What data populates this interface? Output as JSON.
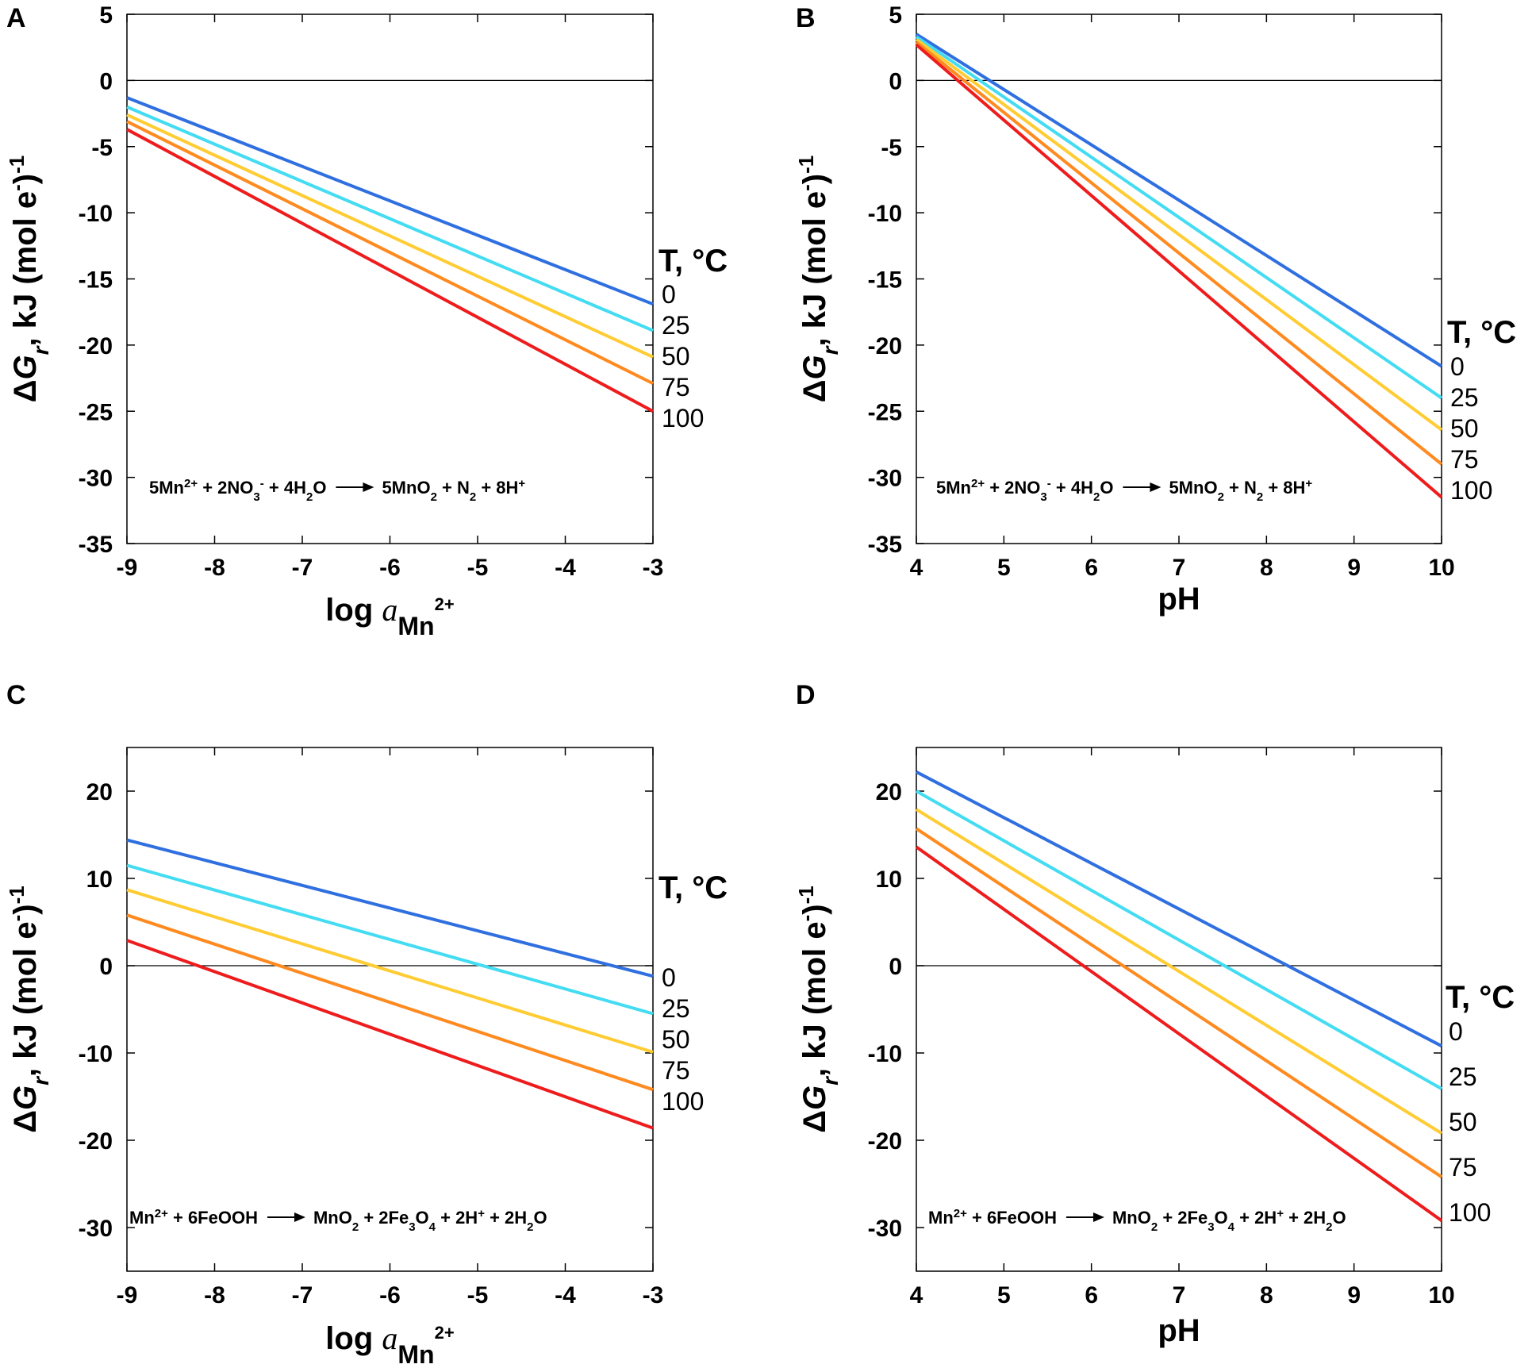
{
  "chart_data": [
    {
      "panel": "A",
      "type": "line",
      "xlabel_main": "log",
      "xlabel_italic": "a",
      "xlabel_sub": "Mn",
      "xlabel_sup": "2+",
      "ylabel_pre": "Δ",
      "ylabel_italic": "G",
      "ylabel_sub": "r",
      "ylabel_post": ", kJ (mol e",
      "ylabel_sup": "-",
      "ylabel_tail": ")",
      "ylabel_exp": "-1",
      "xlim": [
        -9,
        -3
      ],
      "ylim": [
        -35,
        5
      ],
      "xticks": [
        -9,
        -8,
        -7,
        -6,
        -5,
        -4,
        -3
      ],
      "yticks": [
        5,
        0,
        -5,
        -10,
        -15,
        -20,
        -25,
        -30,
        -35
      ],
      "xtick_labels": [
        "-9",
        "-8",
        "-7",
        "-6",
        "-5",
        "-4",
        "-3"
      ],
      "ytick_labels": [
        "5",
        "0",
        "-5",
        "-10",
        "-15",
        "-20",
        "-25",
        "-30",
        "-35"
      ],
      "legend_title": "T, °C",
      "series": [
        {
          "name": "0",
          "color": "#2f6fe0",
          "x": [
            -9,
            -3
          ],
          "y": [
            -1.3,
            -16.9
          ]
        },
        {
          "name": "25",
          "color": "#44dcf2",
          "x": [
            -9,
            -3
          ],
          "y": [
            -2.0,
            -18.9
          ]
        },
        {
          "name": "50",
          "color": "#ffcc33",
          "x": [
            -9,
            -3
          ],
          "y": [
            -2.6,
            -20.9
          ]
        },
        {
          "name": "75",
          "color": "#ff8a1f",
          "x": [
            -9,
            -3
          ],
          "y": [
            -3.1,
            -22.9
          ]
        },
        {
          "name": "100",
          "color": "#ee1c1c",
          "x": [
            -9,
            -3
          ],
          "y": [
            -3.7,
            -25.0
          ]
        }
      ],
      "equation": {
        "lhs": [
          [
            "5Mn",
            "sup",
            "2+"
          ],
          [
            " + 2NO",
            "sub",
            "3"
          ],
          [
            "",
            "sup",
            "-"
          ],
          [
            " + 4H",
            "sub",
            "2"
          ],
          [
            "O",
            "",
            ""
          ]
        ],
        "rhs": [
          [
            "5MnO",
            "sub",
            "2"
          ],
          [
            " + N",
            "sub",
            "2"
          ],
          [
            " + 8H",
            "sup",
            "+"
          ]
        ]
      }
    },
    {
      "panel": "B",
      "type": "line",
      "xlabel": "pH",
      "ylabel_pre": "Δ",
      "ylabel_italic": "G",
      "ylabel_sub": "r",
      "ylabel_post": ", kJ (mol e",
      "ylabel_sup": "-",
      "ylabel_tail": ")",
      "ylabel_exp": "-1",
      "xlim": [
        4,
        10
      ],
      "ylim": [
        -35,
        5
      ],
      "xticks": [
        4,
        5,
        6,
        7,
        8,
        9,
        10
      ],
      "yticks": [
        5,
        0,
        -5,
        -10,
        -15,
        -20,
        -25,
        -30,
        -35
      ],
      "xtick_labels": [
        "4",
        "5",
        "6",
        "7",
        "8",
        "9",
        "10"
      ],
      "ytick_labels": [
        "5",
        "0",
        "-5",
        "-10",
        "-15",
        "-20",
        "-25",
        "-30",
        "-35"
      ],
      "legend_title": "T, °C",
      "series": [
        {
          "name": "0",
          "color": "#2f6fe0",
          "x": [
            4,
            10
          ],
          "y": [
            3.5,
            -21.6
          ]
        },
        {
          "name": "25",
          "color": "#44dcf2",
          "x": [
            4,
            10
          ],
          "y": [
            3.3,
            -24.0
          ]
        },
        {
          "name": "50",
          "color": "#ffcc33",
          "x": [
            4,
            10
          ],
          "y": [
            3.1,
            -26.4
          ]
        },
        {
          "name": "75",
          "color": "#ff8a1f",
          "x": [
            4,
            10
          ],
          "y": [
            2.9,
            -29.0
          ]
        },
        {
          "name": "100",
          "color": "#ee1c1c",
          "x": [
            4,
            10
          ],
          "y": [
            2.7,
            -31.5
          ]
        }
      ],
      "equation": {
        "lhs": [
          [
            "5Mn",
            "sup",
            "2+"
          ],
          [
            " + 2NO",
            "sub",
            "3"
          ],
          [
            "",
            "sup",
            "-"
          ],
          [
            " + 4H",
            "sub",
            "2"
          ],
          [
            "O",
            "",
            ""
          ]
        ],
        "rhs": [
          [
            "5MnO",
            "sub",
            "2"
          ],
          [
            " + N",
            "sub",
            "2"
          ],
          [
            " + 8H",
            "sup",
            "+"
          ]
        ]
      }
    },
    {
      "panel": "C",
      "type": "line",
      "xlabel_main": "log",
      "xlabel_italic": "a",
      "xlabel_sub": "Mn",
      "xlabel_sup": "2+",
      "ylabel_pre": "Δ",
      "ylabel_italic": "G",
      "ylabel_sub": "r",
      "ylabel_post": ", kJ (mol e",
      "ylabel_sup": "-",
      "ylabel_tail": ")",
      "ylabel_exp": "-1",
      "xlim": [
        -9,
        -3
      ],
      "ylim": [
        -35,
        25
      ],
      "xticks": [
        -9,
        -8,
        -7,
        -6,
        -5,
        -4,
        -3
      ],
      "yticks": [
        20,
        10,
        0,
        -10,
        -20,
        -30
      ],
      "xtick_labels": [
        "-9",
        "-8",
        "-7",
        "-6",
        "-5",
        "-4",
        "-3"
      ],
      "ytick_labels": [
        "20",
        "10",
        "0",
        "-10",
        "-20",
        "-30"
      ],
      "legend_title": "T, °C",
      "series": [
        {
          "name": "0",
          "color": "#2f6fe0",
          "x": [
            -9,
            -3
          ],
          "y": [
            14.4,
            -1.2
          ]
        },
        {
          "name": "25",
          "color": "#44dcf2",
          "x": [
            -9,
            -3
          ],
          "y": [
            11.5,
            -5.5
          ]
        },
        {
          "name": "50",
          "color": "#ffcc33",
          "x": [
            -9,
            -3
          ],
          "y": [
            8.7,
            -9.9
          ]
        },
        {
          "name": "75",
          "color": "#ff8a1f",
          "x": [
            -9,
            -3
          ],
          "y": [
            5.8,
            -14.2
          ]
        },
        {
          "name": "100",
          "color": "#ee1c1c",
          "x": [
            -9,
            -3
          ],
          "y": [
            2.9,
            -18.6
          ]
        }
      ],
      "equation": {
        "lhs": [
          [
            "Mn",
            "sup",
            "2+"
          ],
          [
            " + 6FeOOH",
            "",
            ""
          ]
        ],
        "rhs": [
          [
            "MnO",
            "sub",
            "2"
          ],
          [
            " + 2Fe",
            "sub",
            "3"
          ],
          [
            "O",
            "sub",
            "4"
          ],
          [
            " + 2H",
            "sup",
            "+"
          ],
          [
            " + 2H",
            "sub",
            "2"
          ],
          [
            "O",
            "",
            ""
          ]
        ]
      }
    },
    {
      "panel": "D",
      "type": "line",
      "xlabel": "pH",
      "ylabel_pre": "Δ",
      "ylabel_italic": "G",
      "ylabel_sub": "r",
      "ylabel_post": ", kJ (mol e",
      "ylabel_sup": "-",
      "ylabel_tail": ")",
      "ylabel_exp": "-1",
      "xlim": [
        4,
        10
      ],
      "ylim": [
        -35,
        25
      ],
      "xticks": [
        4,
        5,
        6,
        7,
        8,
        9,
        10
      ],
      "yticks": [
        20,
        10,
        0,
        -10,
        -20,
        -30
      ],
      "xtick_labels": [
        "4",
        "5",
        "6",
        "7",
        "8",
        "9",
        "10"
      ],
      "ytick_labels": [
        "20",
        "10",
        "0",
        "-10",
        "-20",
        "-30"
      ],
      "legend_title": "T, °C",
      "series": [
        {
          "name": "0",
          "color": "#2f6fe0",
          "x": [
            4,
            10
          ],
          "y": [
            22.2,
            -9.2
          ]
        },
        {
          "name": "25",
          "color": "#44dcf2",
          "x": [
            4,
            10
          ],
          "y": [
            20.0,
            -14.1
          ]
        },
        {
          "name": "50",
          "color": "#ffcc33",
          "x": [
            4,
            10
          ],
          "y": [
            17.9,
            -19.2
          ]
        },
        {
          "name": "75",
          "color": "#ff8a1f",
          "x": [
            4,
            10
          ],
          "y": [
            15.7,
            -24.2
          ]
        },
        {
          "name": "100",
          "color": "#ee1c1c",
          "x": [
            4,
            10
          ],
          "y": [
            13.6,
            -29.2
          ]
        }
      ],
      "equation": {
        "lhs": [
          [
            "Mn",
            "sup",
            "2+"
          ],
          [
            " + 6FeOOH",
            "",
            ""
          ]
        ],
        "rhs": [
          [
            "MnO",
            "sub",
            "2"
          ],
          [
            " + 2Fe",
            "sub",
            "3"
          ],
          [
            "O",
            "sub",
            "4"
          ],
          [
            " + 2H",
            "sup",
            "+"
          ],
          [
            " + 2H",
            "sub",
            "2"
          ],
          [
            "O",
            "",
            ""
          ]
        ]
      }
    }
  ]
}
